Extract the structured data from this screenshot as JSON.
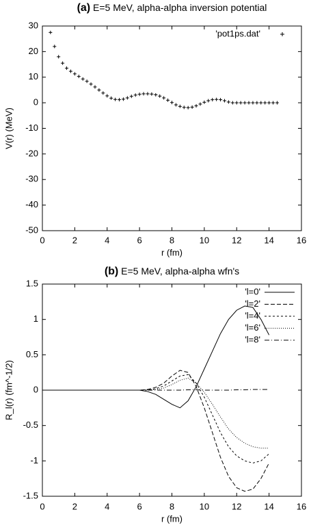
{
  "chart_data": [
    {
      "type": "scatter",
      "panel_label": "(a)",
      "title": "E=5 MeV, alpha-alpha inversion potential",
      "x_label": "r (fm)",
      "y_label": "V(r) (MeV)",
      "xlim": [
        0,
        16
      ],
      "xticks": [
        0,
        2,
        4,
        6,
        8,
        10,
        12,
        14,
        16
      ],
      "ylim": [
        -50,
        30
      ],
      "yticks": [
        -50,
        -40,
        -30,
        -20,
        -10,
        0,
        10,
        20,
        30
      ],
      "legend": "top-right",
      "x": [
        0.5,
        0.75,
        1,
        1.25,
        1.5,
        1.75,
        2,
        2.25,
        2.5,
        2.75,
        3,
        3.25,
        3.5,
        3.75,
        4,
        4.25,
        4.5,
        4.75,
        5,
        5.25,
        5.5,
        5.75,
        6,
        6.25,
        6.5,
        6.75,
        7,
        7.25,
        7.5,
        7.75,
        8,
        8.25,
        8.5,
        8.75,
        9,
        9.25,
        9.5,
        9.75,
        10,
        10.25,
        10.5,
        10.75,
        11,
        11.25,
        11.5,
        11.75,
        12,
        12.25,
        12.5,
        12.75,
        13,
        13.25,
        13.5,
        13.75,
        14,
        14.25,
        14.5
      ],
      "series": [
        {
          "name": "'pot1ps.dat'",
          "color": "#000000",
          "marker": "plus",
          "values": [
            27.5,
            22,
            18,
            15.5,
            13.5,
            12.3,
            11.3,
            10.3,
            9.3,
            8.4,
            7.3,
            6.2,
            5,
            3.8,
            2.7,
            1.8,
            1.3,
            1.2,
            1.4,
            1.9,
            2.5,
            3,
            3.3,
            3.5,
            3.5,
            3.4,
            3.1,
            2.6,
            1.9,
            1,
            0.1,
            -0.8,
            -1.4,
            -1.8,
            -1.9,
            -1.7,
            -1.2,
            -0.5,
            0.2,
            0.8,
            1.2,
            1.3,
            1.2,
            0.8,
            0.3,
            0,
            0,
            0,
            0,
            0,
            0,
            0,
            0,
            0,
            0,
            0,
            0
          ]
        }
      ]
    },
    {
      "type": "line",
      "panel_label": "(b)",
      "title": "E=5 MeV, alpha-alpha wfn's",
      "x_label": "r (fm)",
      "y_label": "R_l(r) (fm^-1/2)",
      "xlim": [
        0,
        16
      ],
      "xticks": [
        0,
        2,
        4,
        6,
        8,
        10,
        12,
        14,
        16
      ],
      "ylim": [
        -1.5,
        1.5
      ],
      "yticks": [
        -1.5,
        -1,
        -0.5,
        0,
        0.5,
        1,
        1.5
      ],
      "legend": "top-right",
      "x": [
        0,
        0.5,
        1,
        1.5,
        2,
        2.5,
        3,
        3.5,
        4,
        4.5,
        5,
        5.5,
        6,
        6.5,
        7,
        7.5,
        8,
        8.5,
        9,
        9.5,
        10,
        10.5,
        11,
        11.5,
        12,
        12.5,
        13,
        13.5,
        14
      ],
      "series": [
        {
          "name": "'l=0'",
          "color": "#000000",
          "dash": "solid",
          "values": [
            0,
            0,
            0,
            0,
            0,
            0,
            0,
            0,
            0,
            0,
            0,
            0,
            0,
            -0.02,
            -0.06,
            -0.13,
            -0.2,
            -0.25,
            -0.15,
            0.05,
            0.3,
            0.55,
            0.8,
            1.0,
            1.13,
            1.19,
            1.17,
            1.0,
            0.78
          ]
        },
        {
          "name": "'l=2'",
          "color": "#000000",
          "dash": "dashed",
          "values": [
            0,
            0,
            0,
            0,
            0,
            0,
            0,
            0,
            0,
            0,
            0,
            0,
            0,
            0.01,
            0.04,
            0.1,
            0.2,
            0.28,
            0.25,
            0.05,
            -0.25,
            -0.6,
            -0.95,
            -1.22,
            -1.38,
            -1.43,
            -1.4,
            -1.25,
            -1.03
          ]
        },
        {
          "name": "'l=4'",
          "color": "#000000",
          "dash": "short-dashed",
          "values": [
            0,
            0,
            0,
            0,
            0,
            0,
            0,
            0,
            0,
            0,
            0,
            0,
            0,
            0,
            0.02,
            0.06,
            0.13,
            0.2,
            0.22,
            0.1,
            -0.1,
            -0.35,
            -0.6,
            -0.8,
            -0.93,
            -1.0,
            -1.03,
            -1.0,
            -0.9
          ]
        },
        {
          "name": "'l=6'",
          "color": "#000000",
          "dash": "dotted",
          "values": [
            0,
            0,
            0,
            0,
            0,
            0,
            0,
            0,
            0,
            0,
            0,
            0,
            0,
            0.005,
            0.01,
            0.03,
            0.08,
            0.14,
            0.17,
            0.1,
            -0.03,
            -0.2,
            -0.38,
            -0.55,
            -0.67,
            -0.75,
            -0.8,
            -0.82,
            -0.82
          ]
        },
        {
          "name": "'l=8'",
          "color": "#000000",
          "dash": "dash-dot",
          "values": [
            0,
            0,
            0,
            0,
            0,
            0,
            0,
            0,
            0,
            0,
            0,
            0,
            0,
            0,
            0,
            0,
            0,
            0,
            0.005,
            0.005,
            0,
            0,
            0,
            0,
            0.005,
            0.005,
            0.01,
            0.01,
            0.01
          ]
        }
      ]
    }
  ]
}
